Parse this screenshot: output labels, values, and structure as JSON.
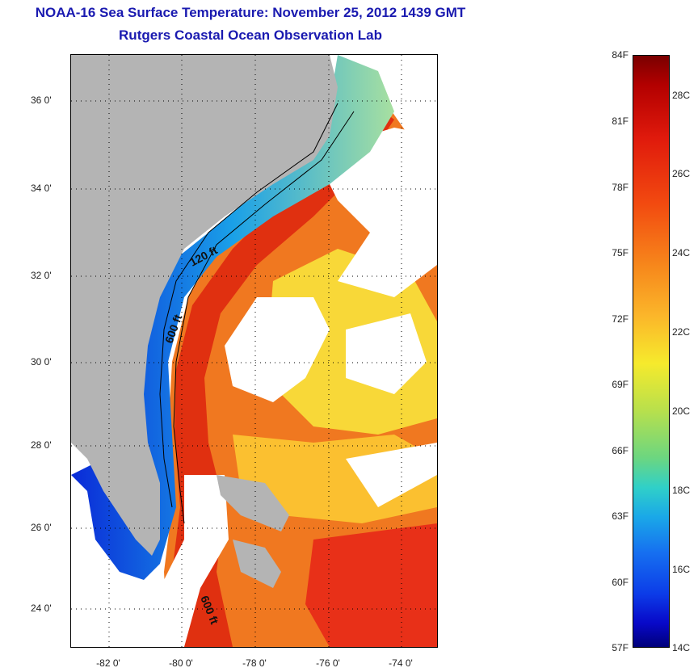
{
  "header": {
    "title": "NOAA-16 Sea Surface Temperature:  November 25, 2012 1439 GMT",
    "subtitle": "Rutgers Coastal Ocean Observation Lab"
  },
  "map": {
    "lat_labels": [
      "36 0'",
      "34 0'",
      "32 0'",
      "30 0'",
      "28 0'",
      "26 0'",
      "24 0'"
    ],
    "lon_labels": [
      "-82 0'",
      "-80 0'",
      "-78 0'",
      "-76 0'",
      "-74 0'"
    ],
    "contours": {
      "c120": "120 ft",
      "c600a": "600 ft",
      "c600b": "600 ft"
    },
    "colors": {
      "land": "#b4b4b4",
      "cloud": "#ffffff"
    }
  },
  "colorbar": {
    "fahrenheit": [
      "84F",
      "81F",
      "78F",
      "75F",
      "72F",
      "69F",
      "66F",
      "63F",
      "60F",
      "57F"
    ],
    "celsius": [
      "28C",
      "26C",
      "24C",
      "22C",
      "20C",
      "18C",
      "16C",
      "14C"
    ]
  }
}
